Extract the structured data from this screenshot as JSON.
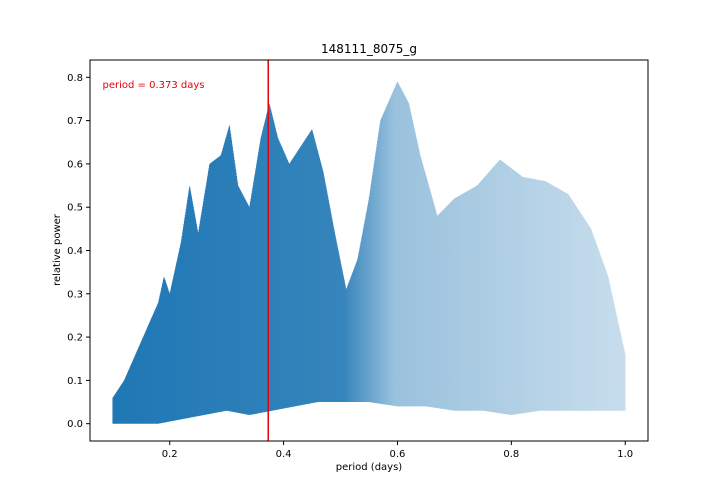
{
  "chart_data": {
    "type": "line",
    "title": "148111_8075_g",
    "xlabel": "period (days)",
    "ylabel": "relative power",
    "xlim": [
      0.06,
      1.04
    ],
    "ylim": [
      -0.04,
      0.84
    ],
    "x_ticks": [
      0.2,
      0.4,
      0.6,
      0.8,
      1.0
    ],
    "x_tick_labels": [
      "0.2",
      "0.4",
      "0.6",
      "0.8",
      "1.0"
    ],
    "y_ticks": [
      0.0,
      0.1,
      0.2,
      0.3,
      0.4,
      0.5,
      0.6,
      0.7,
      0.8
    ],
    "y_tick_labels": [
      "0.0",
      "0.1",
      "0.2",
      "0.3",
      "0.4",
      "0.5",
      "0.6",
      "0.7",
      "0.8"
    ],
    "series_color": "#1f77b4",
    "marker_color": "#e8000b",
    "period_line_x": 0.373,
    "annotation": "period = 0.373 days",
    "envelope": {
      "period_range": [
        0.1,
        1.0
      ],
      "upper": [
        [
          0.1,
          0.06
        ],
        [
          0.12,
          0.1
        ],
        [
          0.14,
          0.16
        ],
        [
          0.16,
          0.22
        ],
        [
          0.18,
          0.28
        ],
        [
          0.19,
          0.34
        ],
        [
          0.2,
          0.3
        ],
        [
          0.22,
          0.42
        ],
        [
          0.235,
          0.55
        ],
        [
          0.25,
          0.44
        ],
        [
          0.27,
          0.6
        ],
        [
          0.29,
          0.62
        ],
        [
          0.305,
          0.69
        ],
        [
          0.32,
          0.55
        ],
        [
          0.34,
          0.5
        ],
        [
          0.36,
          0.66
        ],
        [
          0.375,
          0.74
        ],
        [
          0.39,
          0.66
        ],
        [
          0.41,
          0.6
        ],
        [
          0.43,
          0.64
        ],
        [
          0.45,
          0.68
        ],
        [
          0.47,
          0.58
        ],
        [
          0.49,
          0.44
        ],
        [
          0.51,
          0.31
        ],
        [
          0.53,
          0.38
        ],
        [
          0.55,
          0.52
        ],
        [
          0.57,
          0.7
        ],
        [
          0.6,
          0.79
        ],
        [
          0.62,
          0.74
        ],
        [
          0.64,
          0.62
        ],
        [
          0.67,
          0.48
        ],
        [
          0.7,
          0.52
        ],
        [
          0.74,
          0.55
        ],
        [
          0.78,
          0.61
        ],
        [
          0.82,
          0.57
        ],
        [
          0.86,
          0.56
        ],
        [
          0.9,
          0.53
        ],
        [
          0.94,
          0.45
        ],
        [
          0.97,
          0.34
        ],
        [
          1.0,
          0.16
        ]
      ],
      "lower": [
        [
          0.1,
          0.0
        ],
        [
          0.18,
          0.0
        ],
        [
          0.22,
          0.01
        ],
        [
          0.26,
          0.02
        ],
        [
          0.3,
          0.03
        ],
        [
          0.34,
          0.02
        ],
        [
          0.38,
          0.03
        ],
        [
          0.42,
          0.04
        ],
        [
          0.46,
          0.05
        ],
        [
          0.5,
          0.05
        ],
        [
          0.55,
          0.05
        ],
        [
          0.6,
          0.04
        ],
        [
          0.65,
          0.04
        ],
        [
          0.7,
          0.03
        ],
        [
          0.75,
          0.03
        ],
        [
          0.8,
          0.02
        ],
        [
          0.85,
          0.03
        ],
        [
          0.9,
          0.03
        ],
        [
          0.95,
          0.03
        ],
        [
          1.0,
          0.03
        ]
      ]
    }
  }
}
